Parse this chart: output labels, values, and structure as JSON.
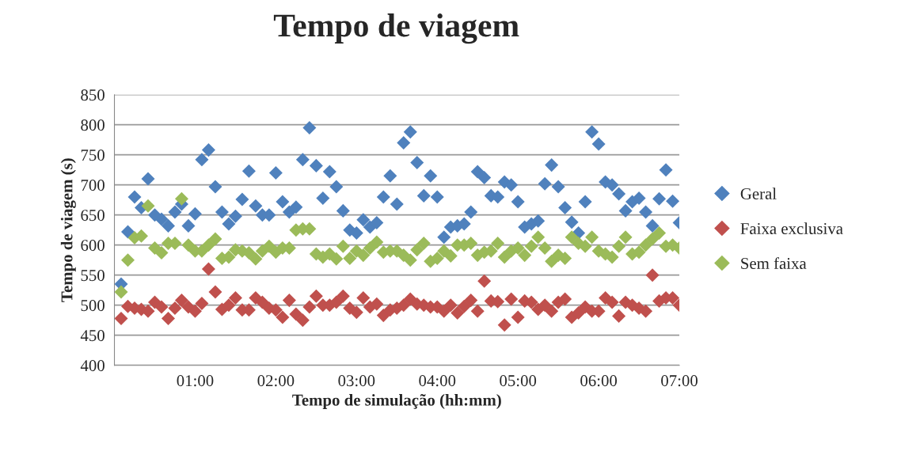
{
  "chart_data": {
    "type": "scatter",
    "title": "Tempo de viagem",
    "xlabel": "Tempo de simulação (hh:mm)",
    "ylabel": "Tempo de viagem (s)",
    "x": [
      0.0833,
      0.1667,
      0.25,
      0.3333,
      0.4167,
      0.5,
      0.5833,
      0.6667,
      0.75,
      0.8333,
      0.9167,
      1.0,
      1.0833,
      1.1667,
      1.25,
      1.3333,
      1.4167,
      1.5,
      1.5833,
      1.6667,
      1.75,
      1.8333,
      1.9167,
      2.0,
      2.0833,
      2.1667,
      2.25,
      2.3333,
      2.4167,
      2.5,
      2.5833,
      2.6667,
      2.75,
      2.8333,
      2.9167,
      3.0,
      3.0833,
      3.1667,
      3.25,
      3.3333,
      3.4167,
      3.5,
      3.5833,
      3.6667,
      3.75,
      3.8333,
      3.9167,
      4.0,
      4.0833,
      4.1667,
      4.25,
      4.3333,
      4.4167,
      4.5,
      4.5833,
      4.6667,
      4.75,
      4.8333,
      4.9167,
      5.0,
      5.0833,
      5.1667,
      5.25,
      5.3333,
      5.4167,
      5.5,
      5.5833,
      5.6667,
      5.75,
      5.8333,
      5.9167,
      6.0,
      6.0833,
      6.1667,
      6.25,
      6.3333,
      6.4167,
      6.5,
      6.5833,
      6.6667,
      6.75,
      6.8333,
      6.9167,
      7.0
    ],
    "series": [
      {
        "name": "Geral",
        "color": "#4f81bd",
        "values": [
          535,
          622,
          680,
          662,
          710,
          650,
          643,
          632,
          655,
          668,
          632,
          652,
          742,
          758,
          697,
          655,
          635,
          648,
          676,
          723,
          665,
          650,
          650,
          720,
          672,
          655,
          663,
          742,
          795,
          732,
          678,
          722,
          697,
          657,
          625,
          620,
          642,
          630,
          637,
          680,
          715,
          668,
          770,
          788,
          737,
          682,
          715,
          680,
          613,
          630,
          632,
          635,
          655,
          722,
          712,
          682,
          680,
          705,
          700,
          672,
          630,
          635,
          640,
          702,
          733,
          697,
          662,
          638,
          620,
          672,
          788,
          768,
          705,
          700,
          685,
          657,
          672,
          678,
          655,
          632,
          677,
          725,
          673,
          637
        ]
      },
      {
        "name": "Faixa exclusiva",
        "color": "#c0504d",
        "values": [
          478,
          498,
          495,
          493,
          490,
          505,
          497,
          478,
          495,
          508,
          497,
          490,
          503,
          560,
          522,
          493,
          500,
          512,
          492,
          492,
          512,
          505,
          495,
          492,
          480,
          508,
          485,
          475,
          497,
          515,
          500,
          500,
          505,
          515,
          495,
          488,
          512,
          497,
          502,
          483,
          492,
          495,
          500,
          510,
          502,
          500,
          497,
          497,
          490,
          500,
          487,
          498,
          508,
          490,
          540,
          507,
          506,
          467,
          510,
          480,
          507,
          505,
          493,
          500,
          490,
          505,
          510,
          480,
          487,
          497,
          490,
          490,
          512,
          505,
          482,
          505,
          500,
          495,
          490,
          550,
          507,
          512,
          512,
          500
        ]
      },
      {
        "name": "Sem faixa",
        "color": "#9bbb59",
        "values": [
          522,
          575,
          612,
          615,
          665,
          595,
          587,
          603,
          603,
          677,
          600,
          590,
          590,
          600,
          610,
          578,
          580,
          592,
          590,
          587,
          577,
          590,
          598,
          588,
          595,
          595,
          625,
          627,
          627,
          585,
          580,
          585,
          577,
          598,
          578,
          590,
          583,
          595,
          605,
          588,
          590,
          590,
          583,
          575,
          592,
          603,
          573,
          578,
          590,
          582,
          600,
          600,
          603,
          583,
          588,
          590,
          603,
          580,
          590,
          595,
          583,
          598,
          613,
          595,
          573,
          583,
          578,
          613,
          603,
          598,
          613,
          590,
          585,
          580,
          598,
          613,
          585,
          588,
          600,
          610,
          620,
          598,
          600,
          595
        ]
      }
    ],
    "xlim": [
      0,
      7
    ],
    "xticks": [
      {
        "value": 1,
        "label": "01:00"
      },
      {
        "value": 2,
        "label": "02:00"
      },
      {
        "value": 3,
        "label": "03:00"
      },
      {
        "value": 4,
        "label": "04:00"
      },
      {
        "value": 5,
        "label": "05:00"
      },
      {
        "value": 6,
        "label": "06:00"
      },
      {
        "value": 7,
        "label": "07:00"
      }
    ],
    "ylim": [
      400,
      850
    ],
    "yticks": [
      400,
      450,
      500,
      550,
      600,
      650,
      700,
      750,
      800,
      850
    ],
    "grid": "y",
    "legend": "right",
    "marker": "diamond"
  }
}
